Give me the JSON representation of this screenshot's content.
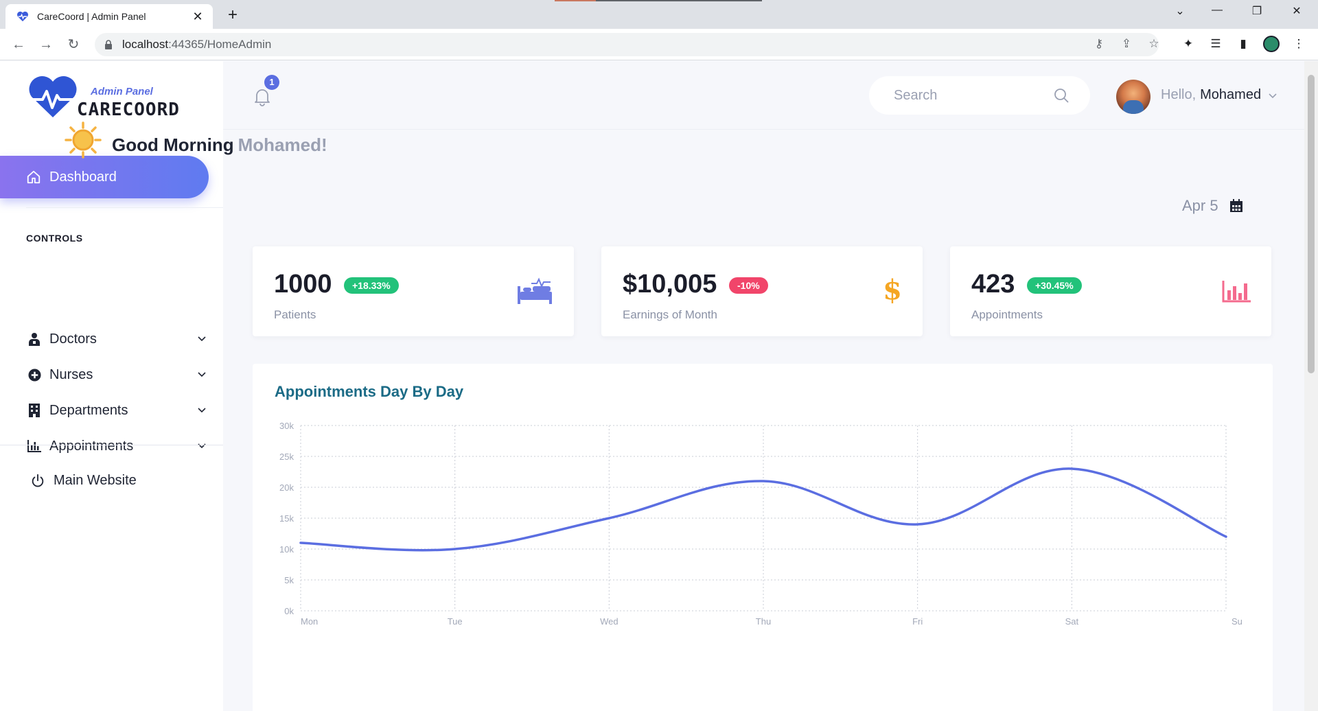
{
  "browser": {
    "tab_title": "CareCoord | Admin Panel",
    "url_host": "localhost",
    "url_rest": ":44365/HomeAdmin"
  },
  "sidebar": {
    "logo_sub": "Admin Panel",
    "logo_main": "CARECOORD",
    "active_item": "Dashboard",
    "section_title": "CONTROLS",
    "items": [
      {
        "label": "Doctors",
        "icon": "user-doctor-icon"
      },
      {
        "label": "Nurses",
        "icon": "plus-circle-icon"
      },
      {
        "label": "Departments",
        "icon": "building-icon"
      },
      {
        "label": "Appointments",
        "icon": "bar-chart-icon"
      }
    ],
    "main_website": "Main Website"
  },
  "header": {
    "notification_count": "1",
    "search_placeholder": "Search",
    "hello": "Hello,",
    "user_name": "Mohamed"
  },
  "greeting": {
    "text": "Good Morning",
    "name": "Mohamed!",
    "date": "Apr 5"
  },
  "cards": [
    {
      "value": "1000",
      "badge": "+18.33%",
      "badge_color": "#22c27a",
      "label": "Patients",
      "icon": "bed-icon",
      "icon_color": "#6f7de3"
    },
    {
      "value": "$10,005",
      "badge": "-10%",
      "badge_color": "#f1456a",
      "label": "Earnings of Month",
      "icon": "dollar-icon",
      "icon_color": "#f5a623"
    },
    {
      "value": "423",
      "badge": "+30.45%",
      "badge_color": "#22c27a",
      "label": "Appointments",
      "icon": "chart-bar-icon",
      "icon_color": "#f46b8e"
    }
  ],
  "chart_data": {
    "type": "line",
    "title": "Appointments Day By Day",
    "categories": [
      "Mon",
      "Tue",
      "Wed",
      "Thu",
      "Fri",
      "Sat",
      "Su"
    ],
    "series": [
      {
        "values": [
          11000,
          10000,
          15000,
          21000,
          14000,
          23000,
          12000
        ]
      }
    ],
    "ylim": [
      0,
      30000
    ],
    "y_ticks": [
      "0k",
      "5k",
      "10k",
      "15k",
      "20k",
      "25k",
      "30k"
    ],
    "grid": true,
    "line_color": "#5b6ee1"
  }
}
